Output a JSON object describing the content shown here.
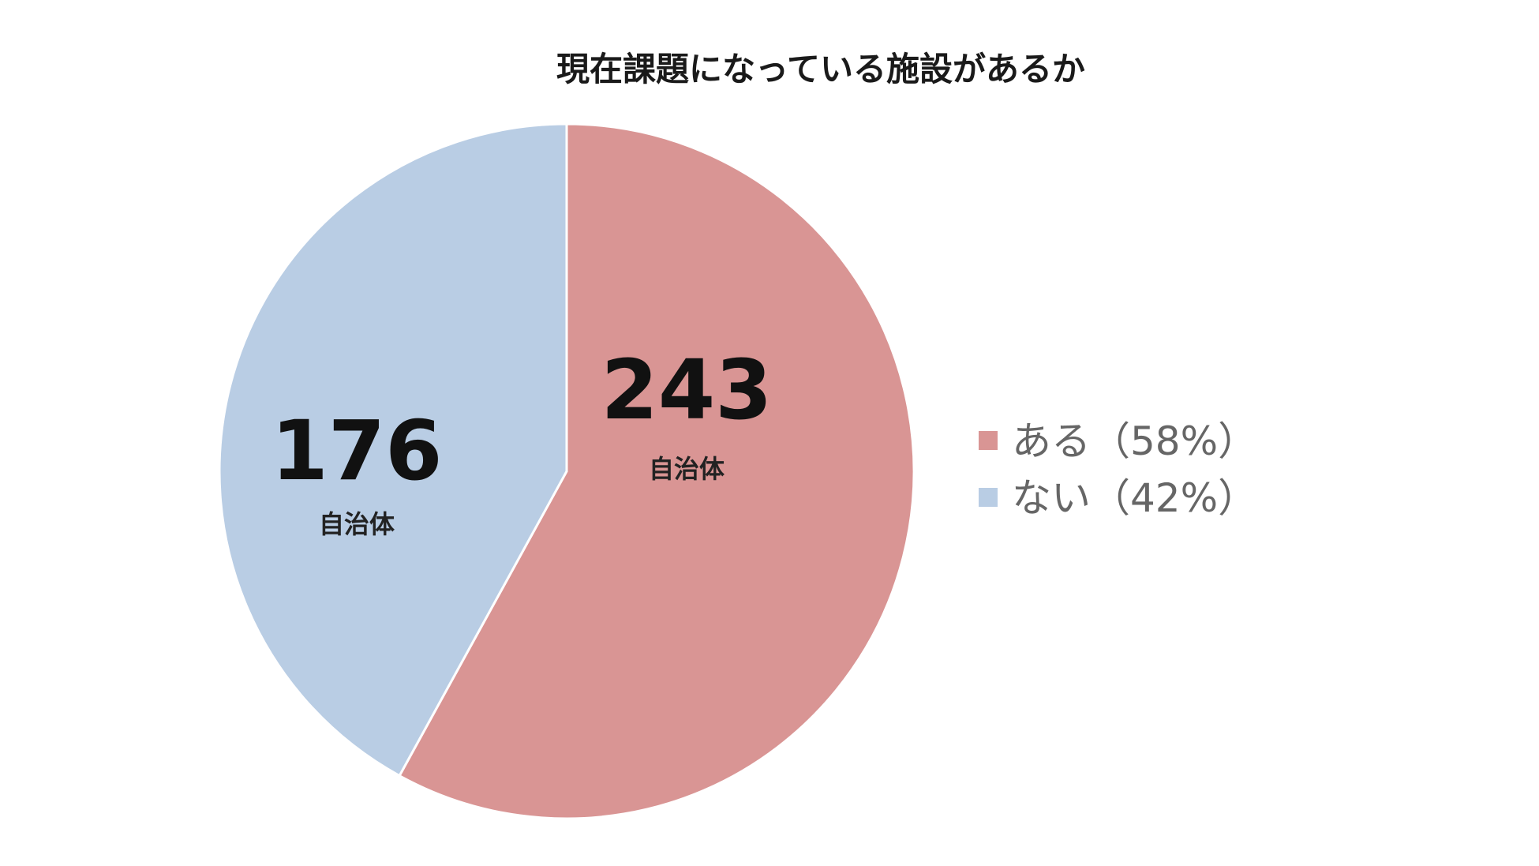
{
  "chart_data": {
    "type": "pie",
    "title": "現在課題になっている施設があるか",
    "unit": "自治体",
    "slices": [
      {
        "label": "ある",
        "value": 243,
        "percent": 58,
        "legend": "ある（58%）",
        "color": "#d99594"
      },
      {
        "label": "ない",
        "value": 176,
        "percent": 42,
        "legend": "ない（42%）",
        "color": "#b9cde4"
      }
    ],
    "start_angle": "12 o'clock",
    "direction": "clockwise",
    "legend_position": "right"
  }
}
